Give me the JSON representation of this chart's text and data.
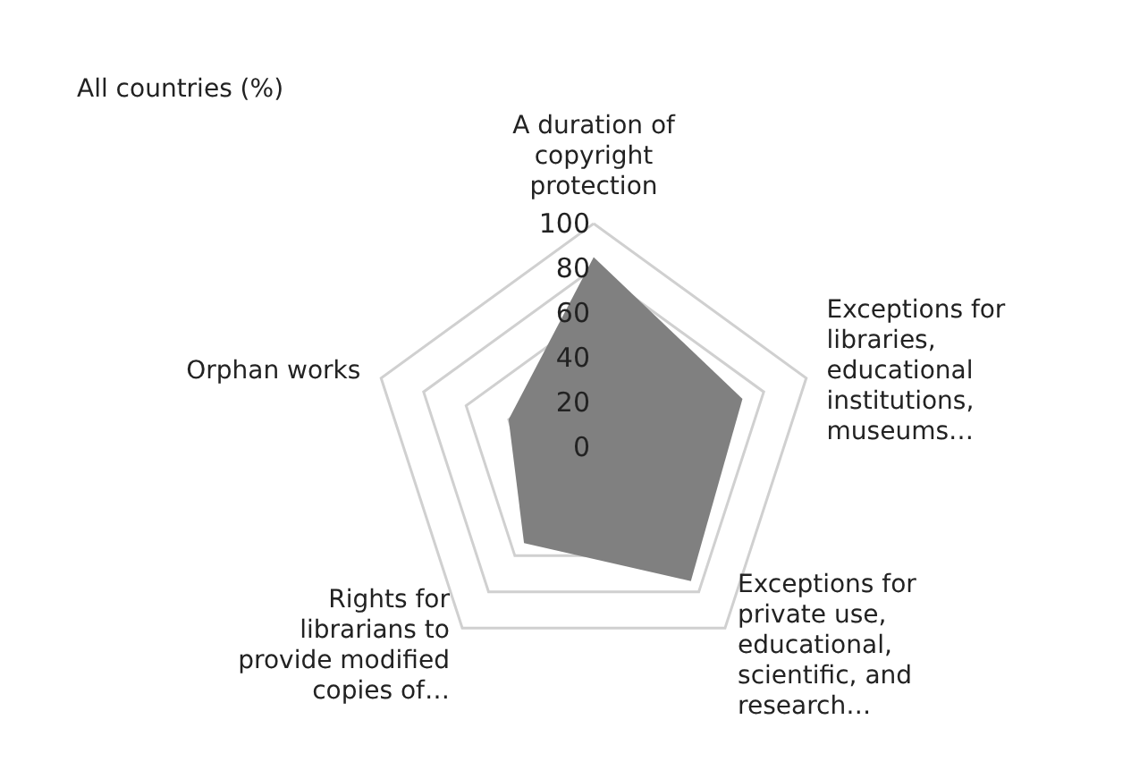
{
  "chart_data": {
    "type": "radar",
    "title": "All countries (%)",
    "categories": [
      "A duration of copyright protection",
      "Exceptions for libraries, educational institutions, museums…",
      "Exceptions for private use, educational, scientific, and research…",
      "Rights for librarians to provide modified copies of…",
      "Orphan works"
    ],
    "series": [
      {
        "color": "#808080",
        "values": [
          85,
          70,
          74,
          53,
          40
        ]
      }
    ],
    "ylim": [
      0,
      100
    ],
    "yticks": [
      0,
      20,
      40,
      60,
      80,
      100
    ]
  }
}
